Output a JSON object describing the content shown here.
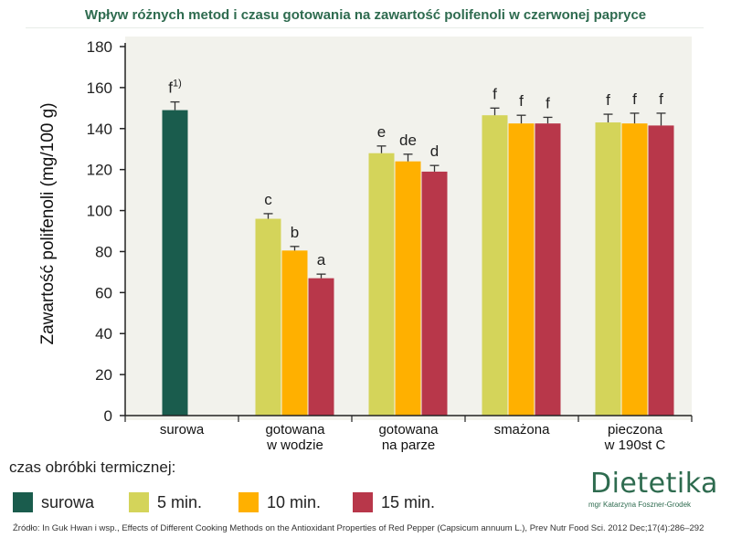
{
  "header": {
    "title": "Wpływ różnych metod i czasu gotowania na zawartość polifenoli w czerwonej papryce"
  },
  "legend": {
    "caption": "czas obróbki termicznej:",
    "items": [
      {
        "label": "surowa",
        "color": "#1a5c4d"
      },
      {
        "label": "5 min.",
        "color": "#d4d45a"
      },
      {
        "label": "10 min.",
        "color": "#ffb000"
      },
      {
        "label": "15 min.",
        "color": "#b8374a"
      }
    ]
  },
  "source": "Źródło: In Guk Hwan i wsp., Effects of Different Cooking Methods on the Antioxidant Properties of Red Pepper (Capsicum annuum L.), Prev Nutr Food Sci. 2012 Dec;17(4):286–292",
  "logo": {
    "name": "Dietetika",
    "subtitle": "mgr Katarzyna Foszner-Grodek"
  },
  "chart_data": {
    "type": "bar",
    "ylabel": "Zawartość polifenoli (mg/100 g)",
    "ylim": [
      0,
      180
    ],
    "yticks": [
      0,
      20,
      40,
      60,
      80,
      100,
      120,
      140,
      160,
      180
    ],
    "grid": false,
    "categories": [
      "surowa",
      "gotowana\nw wodzie",
      "gotowana\nna parze",
      "smażona",
      "pieczona\nw 190st C"
    ],
    "groups": [
      {
        "category": "surowa",
        "bars": [
          {
            "series": "surowa",
            "value": 149,
            "error": 4,
            "label": "f",
            "sup": "1)"
          }
        ]
      },
      {
        "category": "gotowana w wodzie",
        "bars": [
          {
            "series": "5 min.",
            "value": 96,
            "error": 2.5,
            "label": "c"
          },
          {
            "series": "10 min.",
            "value": 80.5,
            "error": 2,
            "label": "b"
          },
          {
            "series": "15 min.",
            "value": 67,
            "error": 2,
            "label": "a"
          }
        ]
      },
      {
        "category": "gotowana na parze",
        "bars": [
          {
            "series": "5 min.",
            "value": 128,
            "error": 3.5,
            "label": "e"
          },
          {
            "series": "10 min.",
            "value": 124,
            "error": 3.5,
            "label": "de"
          },
          {
            "series": "15 min.",
            "value": 119,
            "error": 3,
            "label": "d"
          }
        ]
      },
      {
        "category": "smażona",
        "bars": [
          {
            "series": "5 min.",
            "value": 146.5,
            "error": 3.5,
            "label": "f"
          },
          {
            "series": "10 min.",
            "value": 142.5,
            "error": 4,
            "label": "f"
          },
          {
            "series": "15 min.",
            "value": 142.5,
            "error": 3,
            "label": "f"
          }
        ]
      },
      {
        "category": "pieczona w 190st C",
        "bars": [
          {
            "series": "5 min.",
            "value": 143,
            "error": 4,
            "label": "f"
          },
          {
            "series": "10 min.",
            "value": 142.5,
            "error": 5,
            "label": "f"
          },
          {
            "series": "15 min.",
            "value": 141.5,
            "error": 6,
            "label": "f"
          }
        ]
      }
    ]
  }
}
